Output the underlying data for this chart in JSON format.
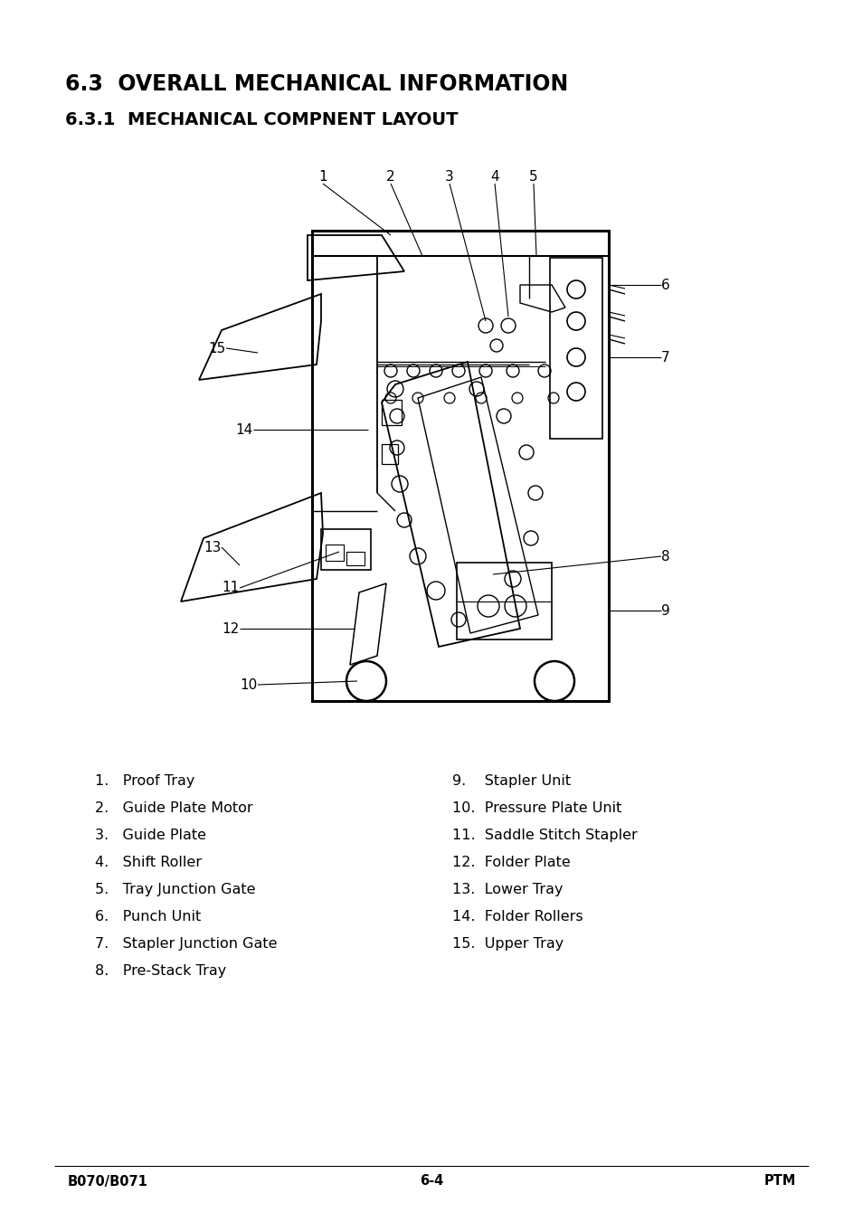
{
  "title1": "6.3  OVERALL MECHANICAL INFORMATION",
  "title2": "6.3.1  MECHANICAL COMPNENT LAYOUT",
  "title1_fontsize": 17,
  "title2_fontsize": 14,
  "bg_color": "#ffffff",
  "text_color": "#000000",
  "list_left": [
    "1.   Proof Tray",
    "2.   Guide Plate Motor",
    "3.   Guide Plate",
    "4.   Shift Roller",
    "5.   Tray Junction Gate",
    "6.   Punch Unit",
    "7.   Stapler Junction Gate",
    "8.   Pre-Stack Tray"
  ],
  "list_right": [
    "9.    Stapler Unit",
    "10.  Pressure Plate Unit",
    "11.  Saddle Stitch Stapler",
    "12.  Folder Plate",
    "13.  Lower Tray",
    "14.  Folder Rollers",
    "15.  Upper Tray"
  ],
  "footer_left": "B070/B071",
  "footer_center": "6-4",
  "footer_right": "PTM",
  "footer_fontsize": 10.5,
  "list_fontsize": 11.5,
  "label_fontsize": 11
}
